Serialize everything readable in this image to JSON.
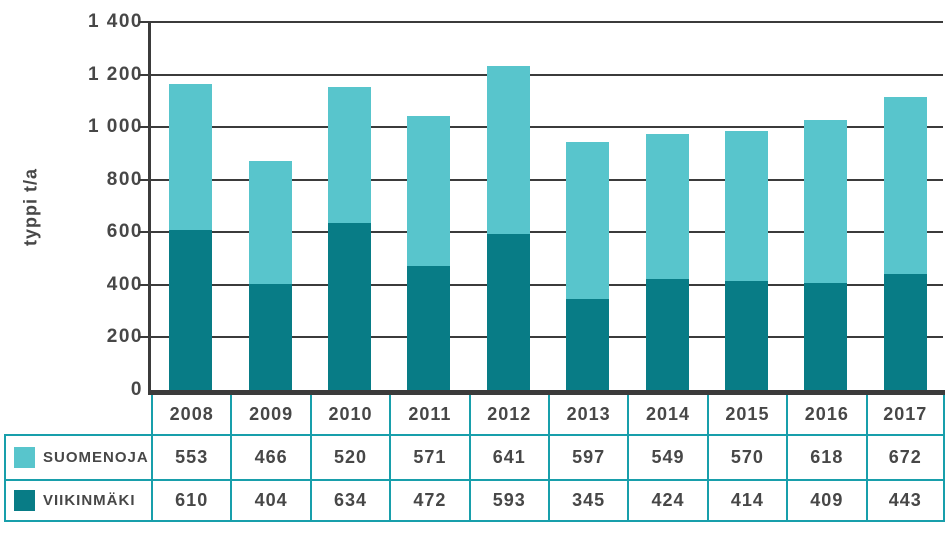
{
  "chart_data": {
    "type": "bar",
    "stacked": true,
    "title": "",
    "xlabel": "",
    "ylabel": "typpi t/a",
    "ylim": [
      0,
      1400
    ],
    "ytick_step": 200,
    "ytick_labels": [
      "0",
      "200",
      "400",
      "600",
      "800",
      "1 000",
      "1 200",
      "1 400"
    ],
    "grid": true,
    "legend_position": "table-left-column",
    "categories": [
      "2008",
      "2009",
      "2010",
      "2011",
      "2012",
      "2013",
      "2014",
      "2015",
      "2016",
      "2017"
    ],
    "series": [
      {
        "name": "SUOMENOJA",
        "color": "#58c5cc",
        "stack_position": "top",
        "values": [
          553,
          466,
          520,
          571,
          641,
          597,
          549,
          570,
          618,
          672
        ]
      },
      {
        "name": "VIIKINMÄKI",
        "color": "#087c86",
        "stack_position": "bottom",
        "values": [
          610,
          404,
          634,
          472,
          593,
          345,
          424,
          414,
          409,
          443
        ]
      }
    ],
    "totals": [
      1163,
      870,
      1154,
      1043,
      1234,
      942,
      973,
      984,
      1027,
      1115
    ]
  },
  "colors": {
    "axis": "#3b3b3b",
    "gridline": "#3b3b3b",
    "text": "#474747",
    "table_border": "#189fab",
    "background": "#ffffff",
    "series_suomenoja": "#58c5cc",
    "series_viikinmaki": "#087c86"
  }
}
